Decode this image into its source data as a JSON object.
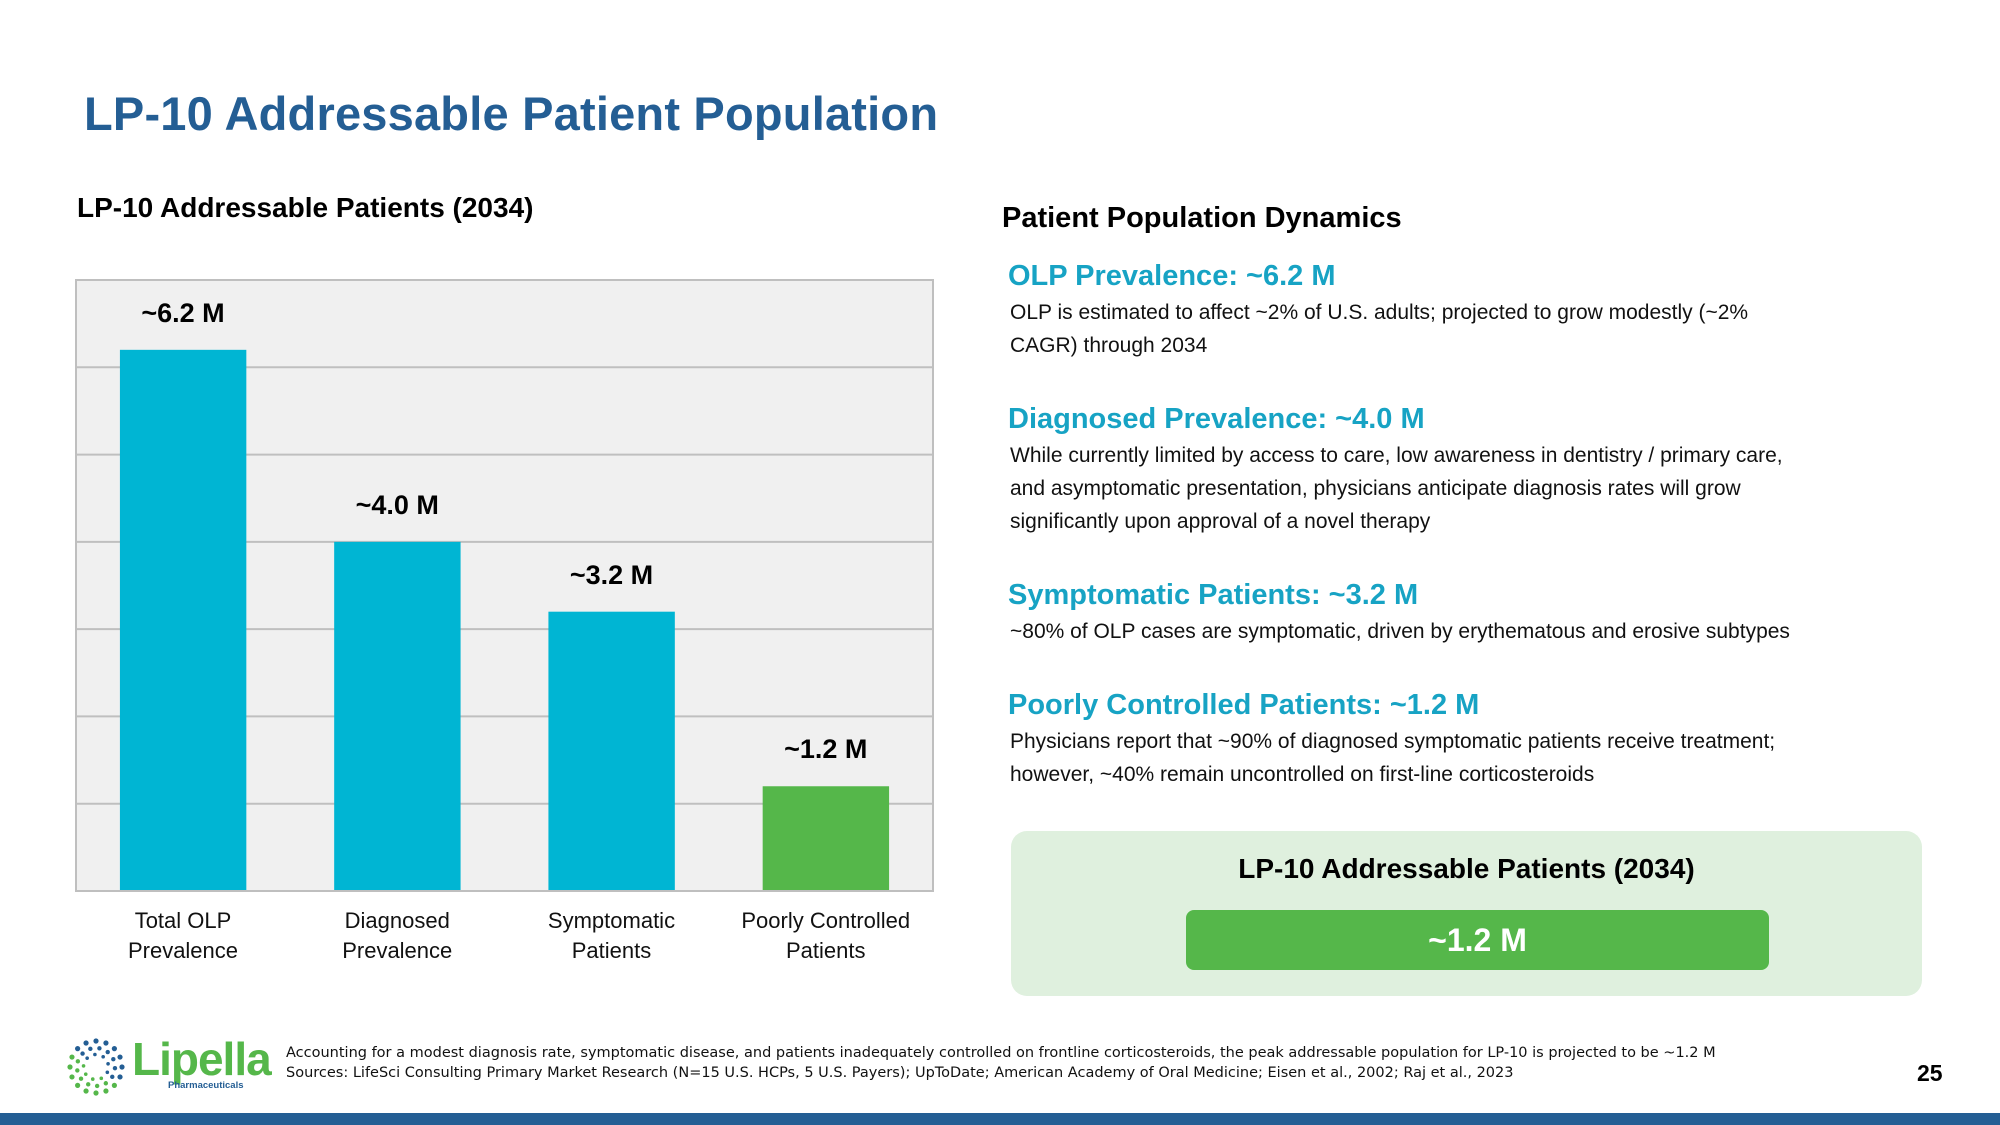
{
  "slide": {
    "title": "LP-10 Addressable Patient Population",
    "page_number": "25"
  },
  "chart_data": {
    "type": "bar",
    "title": "LP-10 Addressable Patients (2034)",
    "categories": [
      [
        "Total OLP",
        "Prevalence"
      ],
      [
        "Diagnosed",
        "Prevalence"
      ],
      [
        "Symptomatic",
        "Patients"
      ],
      [
        "Poorly Controlled",
        "Patients"
      ]
    ],
    "values": [
      6.2,
      4.0,
      3.2,
      1.2
    ],
    "value_labels": [
      "~6.2 M",
      "~4.0 M",
      "~3.2 M",
      "~1.2 M"
    ],
    "units": "millions of patients",
    "bar_colors": [
      "#00B5D3",
      "#00B5D3",
      "#00B5D3",
      "#55B74A"
    ],
    "xlabel": "",
    "ylabel": "",
    "ylim": [
      0,
      7
    ],
    "ytick_step": 1,
    "ytick_labels_shown": false,
    "grid": true,
    "plot_background": "#F0F0F0",
    "gridline_color": "#BFBFBF",
    "legend": "none"
  },
  "dynamics": {
    "heading": "Patient Population Dynamics",
    "sections": [
      {
        "title": "OLP Prevalence: ~6.2 M",
        "lines": [
          "OLP is estimated to affect ~2% of U.S. adults; projected to grow modestly (~2%",
          "CAGR) through 2034"
        ]
      },
      {
        "title": "Diagnosed Prevalence: ~4.0 M",
        "lines": [
          "While currently limited by access to care, low awareness in dentistry / primary care,",
          "and asymptomatic presentation, physicians anticipate diagnosis rates will grow",
          "significantly upon approval of a novel therapy"
        ]
      },
      {
        "title": "Symptomatic Patients: ~3.2 M",
        "lines": [
          "~80% of OLP cases are symptomatic, driven by erythematous and erosive subtypes"
        ]
      },
      {
        "title": "Poorly Controlled Patients: ~1.2 M",
        "lines": [
          "Physicians report that ~90% of diagnosed symptomatic patients receive treatment;",
          "however, ~40% remain uncontrolled on first-line corticosteroids"
        ]
      }
    ]
  },
  "summary": {
    "title": "LP-10 Addressable Patients (2034)",
    "value": "~1.2 M"
  },
  "footer": {
    "note": "Accounting for a modest diagnosis rate, symptomatic disease, and patients inadequately controlled on frontline corticosteroids, the peak addressable population for LP-10 is projected to be ~1.2 M",
    "sources": "Sources: LifeSci Consulting Primary Market Research (N=15 U.S. HCPs, 5 U.S. Payers); UpToDate; American Academy of Oral Medicine; Eisen et al., 2002; Raj et al., 2023",
    "logo_name": "Lipella",
    "logo_sub": "Pharmaceuticals",
    "logo_icon": "dotted-circle-logo-icon"
  },
  "colors": {
    "title_blue": "#245E94",
    "accent_cyan": "#17A3C4",
    "bar_cyan": "#00B5D3",
    "green": "#55B74A",
    "summary_bg": "#DFF0DE"
  }
}
